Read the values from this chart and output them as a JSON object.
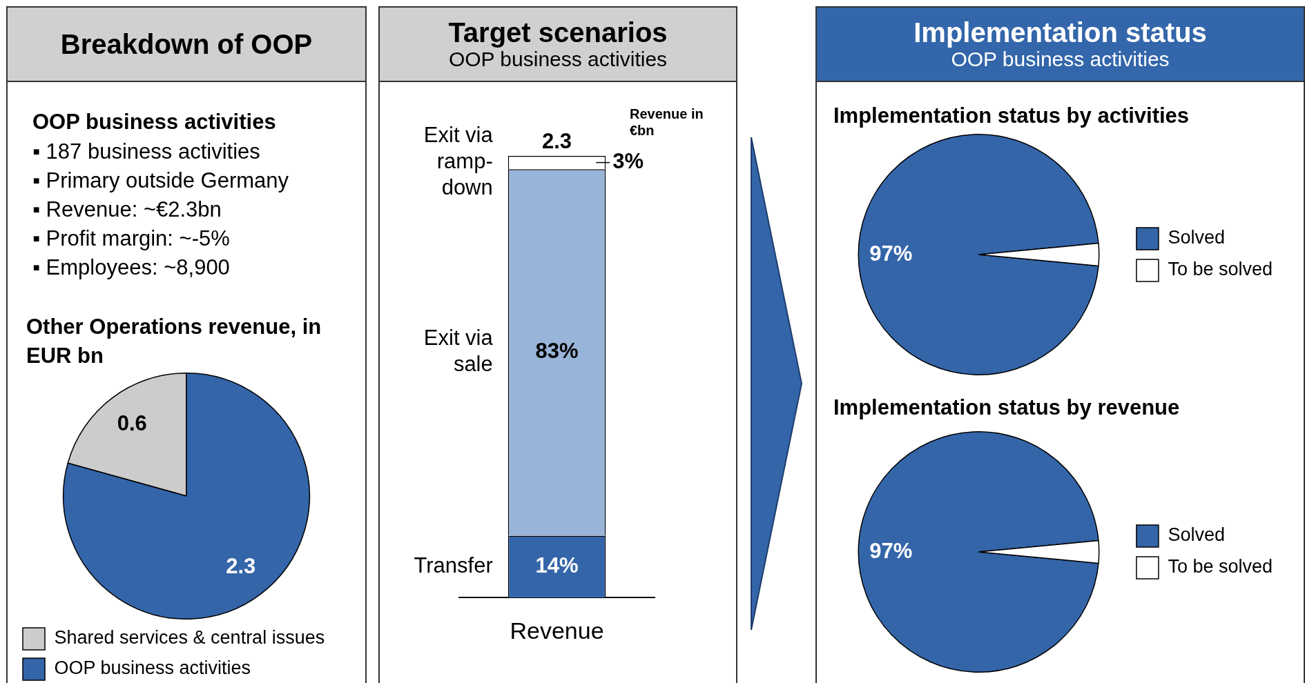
{
  "chart_data": [
    {
      "type": "other",
      "title": "Breakdown of OOP",
      "subtitle": "OOP business activities",
      "annotations": [
        "▪ 187 business activities",
        "▪ Primary outside Germany",
        "▪ Revenue: ~€2.3bn",
        "▪ Profit margin: ~-5%",
        "▪ Employees: ~8,900"
      ]
    },
    {
      "type": "pie",
      "title": "Other Operations revenue, in EUR bn",
      "categories": [
        "Shared services & central issues",
        "OOP business activities"
      ],
      "values": [
        0.6,
        2.3
      ],
      "colors": [
        "#cccccc",
        "#3465a9"
      ],
      "data_labels": true,
      "legend": "bottom"
    },
    {
      "type": "bar",
      "title": "Target scenarios",
      "subtitle": "OOP business activities",
      "categories": [
        "Revenue"
      ],
      "stacked": true,
      "series": [
        {
          "name": "Transfer",
          "color": "#3465a9",
          "values": [
            14
          ],
          "value_labels": [
            "14%"
          ]
        },
        {
          "name": "Exit via sale",
          "color": "#98b4d8",
          "values": [
            83
          ],
          "value_labels": [
            "83%"
          ]
        },
        {
          "name": "Exit via ramp-down",
          "color": "#ffffff",
          "values": [
            3
          ],
          "value_labels": [
            "3%"
          ]
        }
      ],
      "annotations": [
        {
          "text": "2.3",
          "x": "Revenue",
          "y": 100
        },
        "Revenue in €bn"
      ]
    },
    {
      "type": "other",
      "title": "Implementation status",
      "subtitle": "OOP business activities"
    },
    {
      "type": "pie",
      "title": "Implementation status by activities",
      "categories": [
        "Solved",
        "To be solved"
      ],
      "values": [
        97,
        3
      ],
      "colors": [
        "#3465a9",
        "#ffffff"
      ],
      "value_labels": [
        "97%",
        null
      ],
      "legend": "right"
    },
    {
      "type": "pie",
      "title": "Implementation status by revenue",
      "categories": [
        "Solved",
        "To be solved"
      ],
      "values": [
        97,
        3
      ],
      "colors": [
        "#3465a9",
        "#ffffff"
      ],
      "value_labels": [
        "97%",
        null
      ],
      "legend": "right"
    }
  ]
}
